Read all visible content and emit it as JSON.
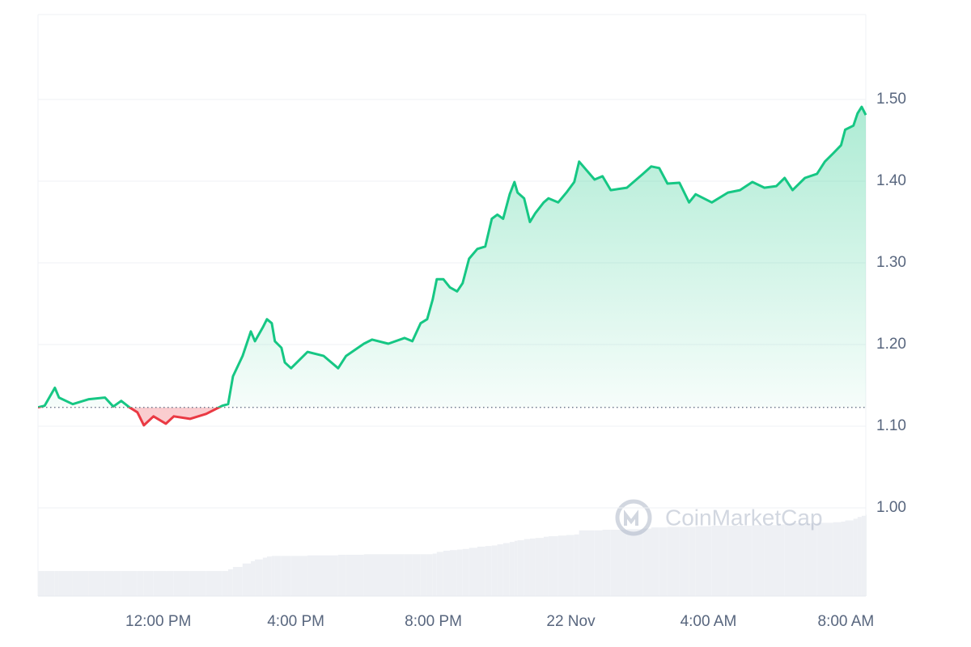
{
  "chart_data": {
    "type": "line",
    "watermark": "CoinMarketCap",
    "x": [
      8.5,
      8.69,
      8.99,
      9.11,
      9.51,
      9.98,
      10.45,
      10.69,
      10.92,
      11.16,
      11.39,
      11.58,
      11.86,
      12.22,
      12.45,
      12.92,
      13.39,
      13.86,
      14.03,
      14.17,
      14.45,
      14.69,
      14.81,
      15.04,
      15.16,
      15.3,
      15.39,
      15.58,
      15.68,
      15.86,
      16.34,
      16.81,
      17.23,
      17.46,
      17.98,
      18.22,
      18.69,
      19.16,
      19.39,
      19.63,
      19.82,
      19.98,
      20.1,
      20.29,
      20.48,
      20.69,
      20.85,
      21.04,
      21.28,
      21.51,
      21.7,
      21.86,
      22.03,
      22.22,
      22.36,
      22.45,
      22.64,
      22.81,
      22.97,
      23.21,
      23.35,
      23.63,
      23.87,
      24.1,
      24.24,
      24.69,
      24.92,
      25.16,
      25.63,
      26.1,
      26.34,
      26.57,
      26.81,
      27.16,
      27.44,
      27.63,
      28.1,
      28.57,
      28.92,
      29.28,
      29.63,
      29.98,
      30.22,
      30.45,
      30.81,
      31.16,
      31.39,
      31.63,
      31.86,
      31.98,
      32.22,
      32.34,
      32.46,
      32.58
    ],
    "values": [
      1.123,
      1.125,
      1.147,
      1.135,
      1.127,
      1.133,
      1.135,
      1.124,
      1.131,
      1.123,
      1.117,
      1.101,
      1.112,
      1.103,
      1.112,
      1.109,
      1.115,
      1.125,
      1.127,
      1.161,
      1.186,
      1.216,
      1.204,
      1.221,
      1.231,
      1.226,
      1.204,
      1.196,
      1.178,
      1.171,
      1.191,
      1.186,
      1.171,
      1.186,
      1.201,
      1.206,
      1.201,
      1.208,
      1.204,
      1.226,
      1.231,
      1.255,
      1.28,
      1.28,
      1.27,
      1.265,
      1.275,
      1.305,
      1.317,
      1.32,
      1.354,
      1.359,
      1.354,
      1.384,
      1.399,
      1.386,
      1.379,
      1.35,
      1.361,
      1.374,
      1.379,
      1.374,
      1.386,
      1.399,
      1.424,
      1.402,
      1.406,
      1.389,
      1.392,
      1.409,
      1.418,
      1.416,
      1.397,
      1.398,
      1.374,
      1.384,
      1.374,
      1.386,
      1.389,
      1.399,
      1.392,
      1.394,
      1.404,
      1.389,
      1.404,
      1.409,
      1.424,
      1.434,
      1.444,
      1.463,
      1.468,
      1.483,
      1.491,
      1.481
    ],
    "baseline": 1.123,
    "up_color": "#16c784",
    "down_color": "#ea3943",
    "volume": {
      "color": "#eef0f4",
      "ylim": [
        0,
        100
      ],
      "values": [
        4.3,
        4.3,
        4.3,
        4.3,
        4.3,
        4.3,
        4.3,
        4.3,
        4.3,
        4.3,
        4.3,
        4.3,
        4.3,
        4.3,
        4.3,
        4.3,
        4.3,
        4.3,
        4.6,
        5.0,
        5.6,
        6.0,
        6.3,
        6.6,
        6.8,
        6.9,
        6.9,
        6.9,
        6.9,
        6.9,
        7.0,
        7.0,
        7.1,
        7.1,
        7.2,
        7.2,
        7.2,
        7.2,
        7.2,
        7.2,
        7.2,
        7.3,
        7.6,
        7.8,
        7.9,
        8.0,
        8.1,
        8.3,
        8.5,
        8.6,
        8.7,
        8.9,
        9.1,
        9.3,
        9.5,
        9.6,
        9.8,
        9.9,
        10.0,
        10.2,
        10.3,
        10.4,
        10.5,
        10.6,
        11.3,
        11.3,
        11.4,
        11.4,
        11.5,
        11.6,
        11.8,
        11.8,
        11.9,
        11.9,
        11.9,
        12.0,
        12.1,
        12.1,
        12.1,
        12.2,
        12.2,
        12.3,
        12.4,
        12.5,
        12.5,
        12.6,
        12.6,
        12.7,
        12.8,
        13.0,
        13.3,
        13.6,
        13.8,
        14.0
      ]
    },
    "xlim": [
      8.5,
      32.58
    ],
    "xticks": [
      {
        "value": 12,
        "label": "12:00 PM"
      },
      {
        "value": 16,
        "label": "4:00 PM"
      },
      {
        "value": 20,
        "label": "8:00 PM"
      },
      {
        "value": 24,
        "label": "22 Nov"
      },
      {
        "value": 28,
        "label": "4:00 AM"
      },
      {
        "value": 32,
        "label": "8:00 AM"
      }
    ],
    "ylim": [
      0.892,
      1.604
    ],
    "yticks": [
      {
        "value": 1.0,
        "label": "1.00"
      },
      {
        "value": 1.1,
        "label": "1.10"
      },
      {
        "value": 1.2,
        "label": "1.20"
      },
      {
        "value": 1.3,
        "label": "1.30"
      },
      {
        "value": 1.4,
        "label": "1.40"
      },
      {
        "value": 1.5,
        "label": "1.50"
      }
    ],
    "grid": true
  }
}
